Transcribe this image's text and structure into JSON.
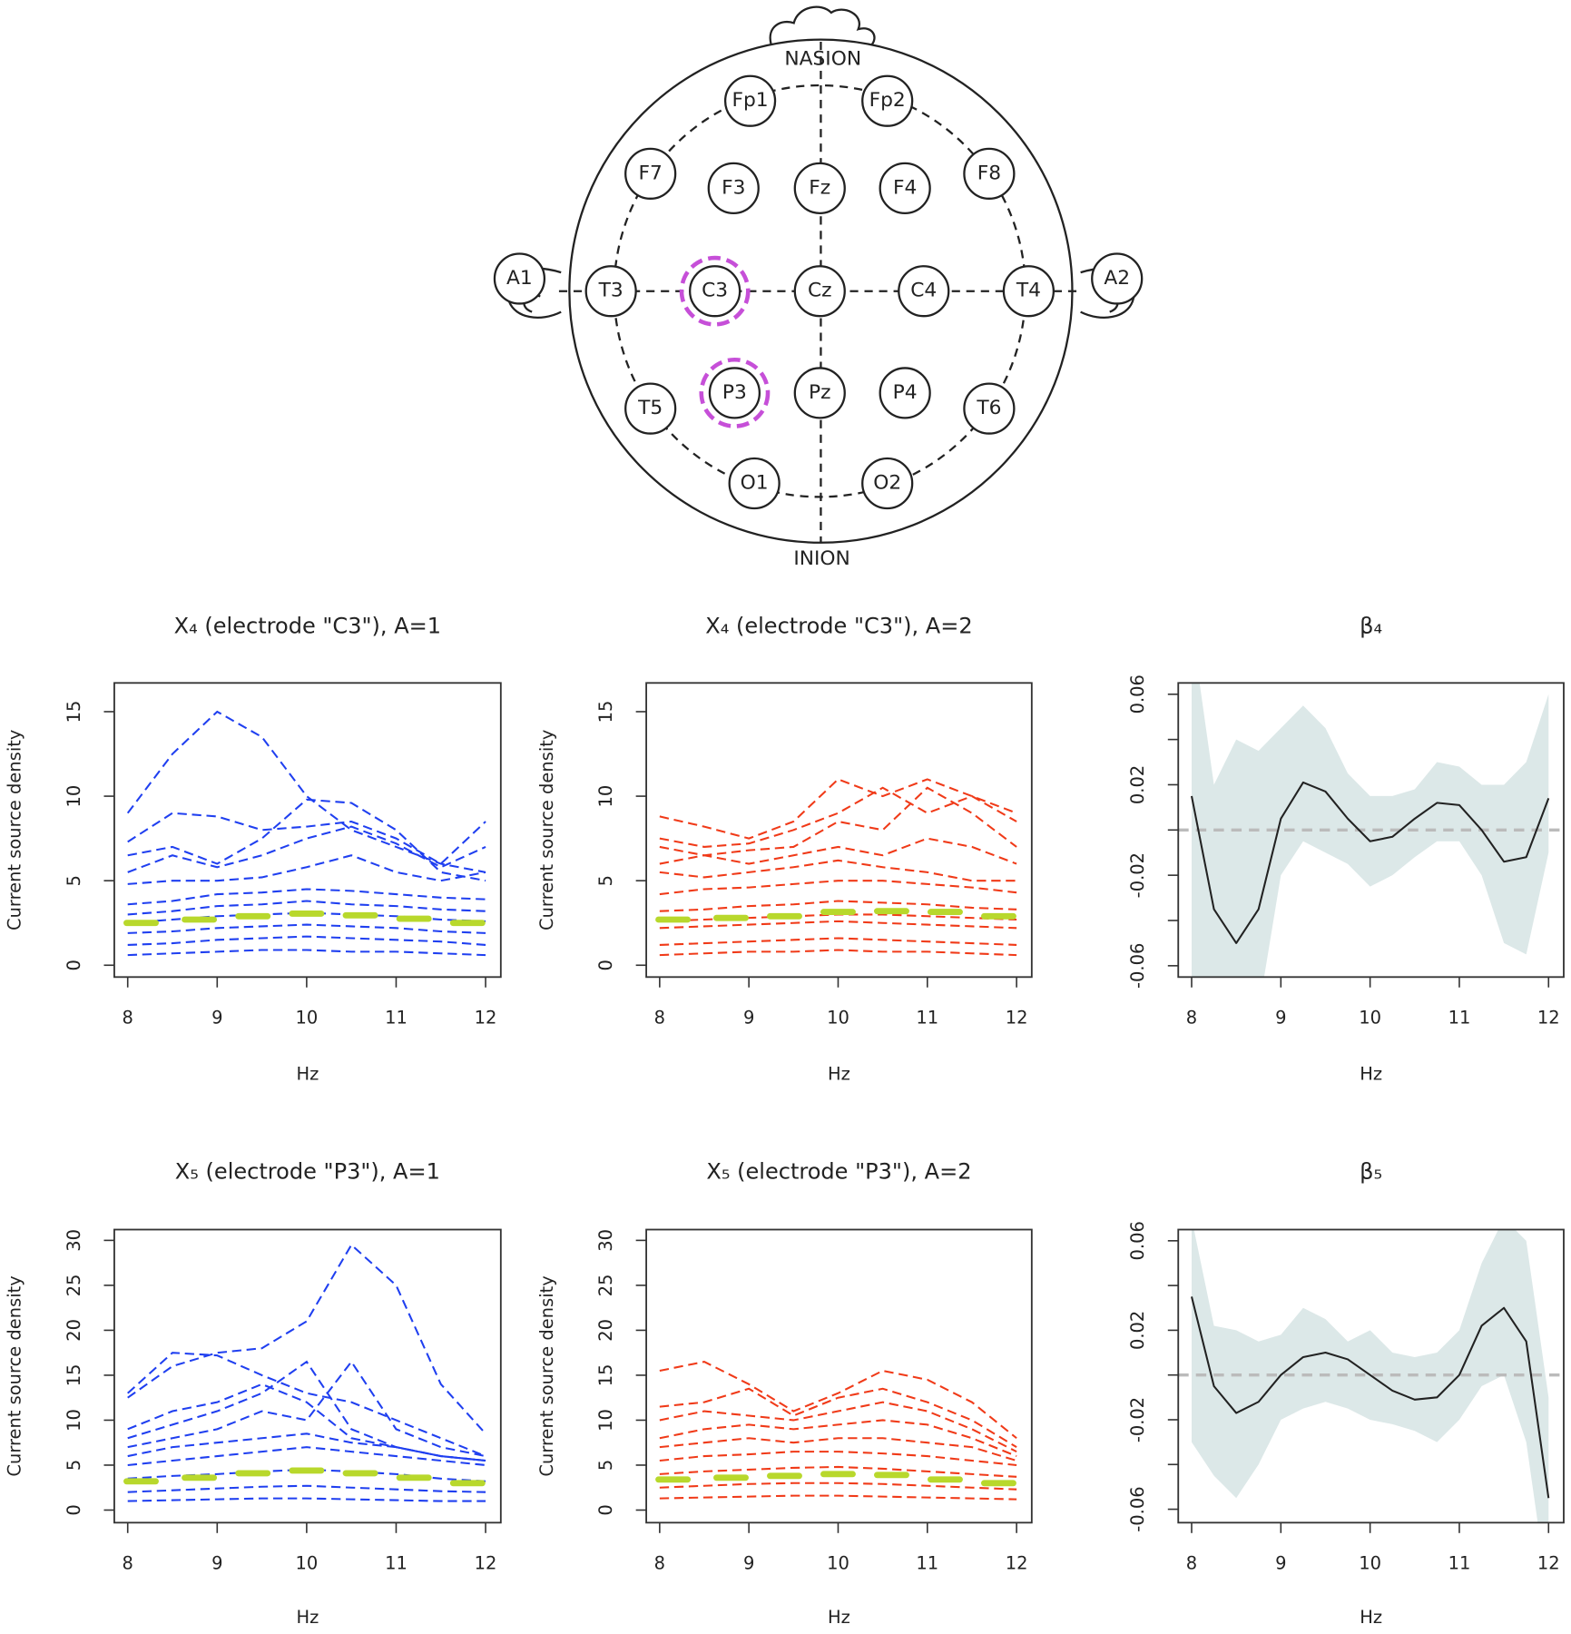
{
  "diagram": {
    "nasion": "NASION",
    "inion": "INION",
    "electrodes": [
      "Fp1",
      "Fp2",
      "F7",
      "F3",
      "Fz",
      "F4",
      "F8",
      "A1",
      "T3",
      "C3",
      "Cz",
      "C4",
      "T4",
      "A2",
      "T5",
      "P3",
      "Pz",
      "P4",
      "T6",
      "O1",
      "O2"
    ]
  },
  "chart_data": [
    {
      "type": "line",
      "title": "X₄ (electrode \"C3\"), A=1",
      "xlabel": "Hz",
      "ylabel": "Current source density",
      "color": "#1f3ff0",
      "dashed": true,
      "x": [
        8,
        8.5,
        9,
        9.5,
        10,
        10.5,
        11,
        11.5,
        12
      ],
      "series": [
        {
          "values": [
            9,
            12.5,
            15,
            13.5,
            10,
            8,
            7,
            6,
            5.5
          ]
        },
        {
          "values": [
            7.3,
            9,
            8.8,
            8,
            8.2,
            8.5,
            7.5,
            6,
            8.5
          ]
        },
        {
          "values": [
            6.5,
            7,
            6,
            7.5,
            9.8,
            9.6,
            8,
            5.5,
            5
          ]
        },
        {
          "values": [
            5.5,
            6.5,
            5.8,
            6.5,
            7.5,
            8.2,
            7.2,
            5.8,
            7
          ]
        },
        {
          "values": [
            4.8,
            5,
            5,
            5.2,
            5.8,
            6.5,
            5.5,
            5,
            5.5
          ]
        },
        {
          "values": [
            3.6,
            3.8,
            4.2,
            4.3,
            4.5,
            4.4,
            4.2,
            4,
            3.9
          ]
        },
        {
          "values": [
            3,
            3.2,
            3.5,
            3.6,
            3.8,
            3.6,
            3.5,
            3.3,
            3.2
          ]
        },
        {
          "values": [
            2.5,
            2.7,
            2.9,
            3,
            3.1,
            3,
            2.9,
            2.7,
            2.6
          ]
        },
        {
          "values": [
            1.9,
            2,
            2.2,
            2.3,
            2.4,
            2.3,
            2.2,
            2,
            1.9
          ]
        },
        {
          "values": [
            1.2,
            1.3,
            1.5,
            1.6,
            1.7,
            1.6,
            1.5,
            1.4,
            1.2
          ]
        },
        {
          "values": [
            0.6,
            0.7,
            0.8,
            0.9,
            0.9,
            0.8,
            0.8,
            0.7,
            0.6
          ]
        }
      ],
      "mean": {
        "color": "#b8d82c",
        "x": [
          8.15,
          8.8,
          9.4,
          10,
          10.6,
          11.2,
          11.8
        ],
        "values": [
          2.5,
          2.7,
          2.9,
          3.05,
          2.95,
          2.75,
          2.5
        ]
      },
      "xlim": [
        7.85,
        12.17
      ],
      "ylim": [
        -0.7,
        16.7
      ],
      "xticks": [
        8,
        9,
        10,
        11,
        12
      ],
      "yticks": [
        0,
        5,
        10,
        15
      ]
    },
    {
      "type": "line",
      "title": "X₄ (electrode \"C3\"), A=2",
      "xlabel": "Hz",
      "ylabel": "Current source density",
      "color": "#f03a18",
      "dashed": true,
      "x": [
        8,
        8.5,
        9,
        9.5,
        10,
        10.5,
        11,
        11.5,
        12
      ],
      "series": [
        {
          "values": [
            8.8,
            8.2,
            7.5,
            8.5,
            11,
            10,
            11,
            10,
            9
          ]
        },
        {
          "values": [
            7.5,
            7,
            7.2,
            8,
            9,
            10.5,
            9,
            10,
            8.5
          ]
        },
        {
          "values": [
            7,
            6.5,
            6.8,
            7,
            8.5,
            8,
            10.5,
            9,
            7
          ]
        },
        {
          "values": [
            6,
            6.5,
            6,
            6.5,
            7,
            6.5,
            7.5,
            7,
            6
          ]
        },
        {
          "values": [
            5.5,
            5.2,
            5.5,
            5.8,
            6.2,
            5.8,
            5.5,
            5,
            5
          ]
        },
        {
          "values": [
            4.2,
            4.5,
            4.6,
            4.8,
            5,
            5,
            4.8,
            4.6,
            4.3
          ]
        },
        {
          "values": [
            3.2,
            3.3,
            3.5,
            3.6,
            3.8,
            3.7,
            3.6,
            3.4,
            3.3
          ]
        },
        {
          "values": [
            2.6,
            2.7,
            2.8,
            2.9,
            3,
            3,
            2.9,
            2.8,
            2.7
          ]
        },
        {
          "values": [
            2.2,
            2.3,
            2.4,
            2.5,
            2.6,
            2.5,
            2.4,
            2.3,
            2.2
          ]
        },
        {
          "values": [
            1.2,
            1.3,
            1.4,
            1.5,
            1.6,
            1.5,
            1.4,
            1.3,
            1.2
          ]
        },
        {
          "values": [
            0.6,
            0.7,
            0.8,
            0.8,
            0.9,
            0.8,
            0.8,
            0.7,
            0.6
          ]
        }
      ],
      "mean": {
        "color": "#b8d82c",
        "x": [
          8.15,
          8.8,
          9.4,
          10,
          10.6,
          11.2,
          11.8
        ],
        "values": [
          2.7,
          2.8,
          2.9,
          3.15,
          3.2,
          3.15,
          2.9
        ]
      },
      "xlim": [
        7.85,
        12.17
      ],
      "ylim": [
        -0.7,
        16.7
      ],
      "xticks": [
        8,
        9,
        10,
        11,
        12
      ],
      "yticks": [
        0,
        5,
        10,
        15
      ]
    },
    {
      "type": "band",
      "title": "β₄",
      "xlabel": "Hz",
      "color": "#222222",
      "band_color": "#dce8e8",
      "hline": 0,
      "hline_color": "#bbbbbb",
      "x": [
        8,
        8.25,
        8.5,
        8.75,
        9,
        9.25,
        9.5,
        9.75,
        10,
        10.25,
        10.5,
        10.75,
        11,
        11.25,
        11.5,
        11.75,
        12
      ],
      "values": [
        0.015,
        -0.035,
        -0.05,
        -0.035,
        0.005,
        0.021,
        0.017,
        0.005,
        -0.005,
        -0.003,
        0.005,
        0.012,
        0.011,
        0,
        -0.014,
        -0.012,
        0.014
      ],
      "lower": [
        -0.08,
        -0.09,
        -0.11,
        -0.08,
        -0.02,
        -0.005,
        -0.01,
        -0.015,
        -0.025,
        -0.02,
        -0.012,
        -0.005,
        -0.005,
        -0.02,
        -0.05,
        -0.055,
        -0.01
      ],
      "upper": [
        0.09,
        0.02,
        0.04,
        0.035,
        0.045,
        0.055,
        0.045,
        0.025,
        0.015,
        0.015,
        0.018,
        0.03,
        0.028,
        0.02,
        0.02,
        0.03,
        0.06
      ],
      "xlim": [
        7.85,
        12.17
      ],
      "ylim": [
        -0.065,
        0.065
      ],
      "xticks": [
        8,
        9,
        10,
        11,
        12
      ],
      "yticks": [
        -0.06,
        -0.02,
        0.02,
        0.06
      ],
      "yminor": [
        -0.04,
        0,
        0.04
      ]
    },
    {
      "type": "line",
      "title": "X₅ (electrode \"P3\"), A=1",
      "xlabel": "Hz",
      "ylabel": "Current source density",
      "color": "#1f3ff0",
      "dashed": true,
      "x": [
        8,
        8.5,
        9,
        9.5,
        10,
        10.5,
        11,
        11.5,
        12
      ],
      "series": [
        {
          "values": [
            12.5,
            16,
            17.5,
            18,
            21,
            29.5,
            25,
            14,
            8.5
          ]
        },
        {
          "values": [
            13,
            17.5,
            17.2,
            15,
            13,
            12,
            10,
            8,
            6
          ]
        },
        {
          "values": [
            9,
            11,
            12,
            14,
            12,
            8,
            7,
            6,
            5.5
          ]
        },
        {
          "values": [
            8,
            9.5,
            11,
            13,
            16.5,
            9,
            7,
            6,
            5.5
          ]
        },
        {
          "values": [
            7,
            8,
            9,
            11,
            10,
            16.5,
            9,
            7,
            6
          ]
        },
        {
          "values": [
            6,
            7,
            7.5,
            8,
            8.5,
            7.5,
            7,
            6,
            5.5
          ]
        },
        {
          "values": [
            5,
            5.5,
            6,
            6.5,
            7,
            6.5,
            6,
            5.5,
            5
          ]
        },
        {
          "values": [
            3.5,
            3.8,
            4,
            4.3,
            4.5,
            4.3,
            4,
            3.5,
            3.2
          ]
        },
        {
          "values": [
            2,
            2.2,
            2.4,
            2.6,
            2.7,
            2.5,
            2.3,
            2.1,
            2
          ]
        },
        {
          "values": [
            1,
            1.1,
            1.2,
            1.3,
            1.3,
            1.2,
            1.1,
            1,
            1
          ]
        }
      ],
      "mean": {
        "color": "#b8d82c",
        "x": [
          8.15,
          8.8,
          9.4,
          10,
          10.6,
          11.2,
          11.8
        ],
        "values": [
          3.2,
          3.6,
          4.1,
          4.4,
          4.1,
          3.6,
          3
        ]
      },
      "xlim": [
        7.85,
        12.17
      ],
      "ylim": [
        -1.4,
        31.2
      ],
      "xticks": [
        8,
        9,
        10,
        11,
        12
      ],
      "yticks": [
        0,
        5,
        10,
        15,
        20,
        25,
        30
      ]
    },
    {
      "type": "line",
      "title": "X₅ (electrode \"P3\"), A=2",
      "xlabel": "Hz",
      "ylabel": "Current source density",
      "color": "#f03a18",
      "dashed": true,
      "x": [
        8,
        8.5,
        9,
        9.5,
        10,
        10.5,
        11,
        11.5,
        12
      ],
      "series": [
        {
          "values": [
            15.5,
            16.5,
            14,
            11,
            13,
            15.5,
            14.5,
            12,
            8
          ]
        },
        {
          "values": [
            11.5,
            12,
            13.5,
            10.5,
            12.5,
            13.5,
            12,
            10,
            7
          ]
        },
        {
          "values": [
            10,
            11,
            10.5,
            10,
            11,
            12,
            11,
            9,
            6.5
          ]
        },
        {
          "values": [
            8,
            9,
            9.5,
            9,
            9.5,
            10,
            9.5,
            8,
            6
          ]
        },
        {
          "values": [
            7,
            7.5,
            8,
            7.5,
            8,
            8,
            7.5,
            7,
            5.5
          ]
        },
        {
          "values": [
            5.5,
            6,
            6.2,
            6.5,
            6.5,
            6.3,
            6,
            5.5,
            5
          ]
        },
        {
          "values": [
            4,
            4.3,
            4.5,
            4.7,
            4.8,
            4.6,
            4.3,
            4,
            3.7
          ]
        },
        {
          "values": [
            2.5,
            2.7,
            2.9,
            3,
            3,
            2.9,
            2.7,
            2.5,
            2.3
          ]
        },
        {
          "values": [
            1.3,
            1.4,
            1.5,
            1.6,
            1.6,
            1.5,
            1.4,
            1.3,
            1.2
          ]
        }
      ],
      "mean": {
        "color": "#b8d82c",
        "x": [
          8.15,
          8.8,
          9.4,
          10,
          10.6,
          11.2,
          11.8
        ],
        "values": [
          3.4,
          3.6,
          3.8,
          4,
          3.9,
          3.4,
          3
        ]
      },
      "xlim": [
        7.85,
        12.17
      ],
      "ylim": [
        -1.4,
        31.2
      ],
      "xticks": [
        8,
        9,
        10,
        11,
        12
      ],
      "yticks": [
        0,
        5,
        10,
        15,
        20,
        25,
        30
      ]
    },
    {
      "type": "band",
      "title": "β₅",
      "xlabel": "Hz",
      "color": "#222222",
      "band_color": "#dce8e8",
      "hline": 0,
      "hline_color": "#bbbbbb",
      "x": [
        8,
        8.25,
        8.5,
        8.75,
        9,
        9.25,
        9.5,
        9.75,
        10,
        10.25,
        10.5,
        10.75,
        11,
        11.25,
        11.5,
        11.75,
        12
      ],
      "values": [
        0.035,
        -0.005,
        -0.017,
        -0.012,
        0,
        0.008,
        0.01,
        0.007,
        0,
        -0.007,
        -0.011,
        -0.01,
        0,
        0.022,
        0.03,
        0.015,
        -0.055
      ],
      "lower": [
        -0.03,
        -0.045,
        -0.055,
        -0.04,
        -0.02,
        -0.015,
        -0.012,
        -0.015,
        -0.02,
        -0.022,
        -0.025,
        -0.03,
        -0.02,
        -0.005,
        0,
        -0.03,
        -0.1
      ],
      "upper": [
        0.07,
        0.022,
        0.02,
        0.015,
        0.018,
        0.03,
        0.025,
        0.015,
        0.02,
        0.01,
        0.008,
        0.01,
        0.02,
        0.05,
        0.07,
        0.06,
        -0.01
      ],
      "xlim": [
        7.85,
        12.17
      ],
      "ylim": [
        -0.066,
        0.065
      ],
      "xticks": [
        8,
        9,
        10,
        11,
        12
      ],
      "yticks": [
        -0.06,
        -0.02,
        0.02,
        0.06
      ],
      "yminor": [
        -0.04,
        0,
        0.04
      ]
    }
  ]
}
